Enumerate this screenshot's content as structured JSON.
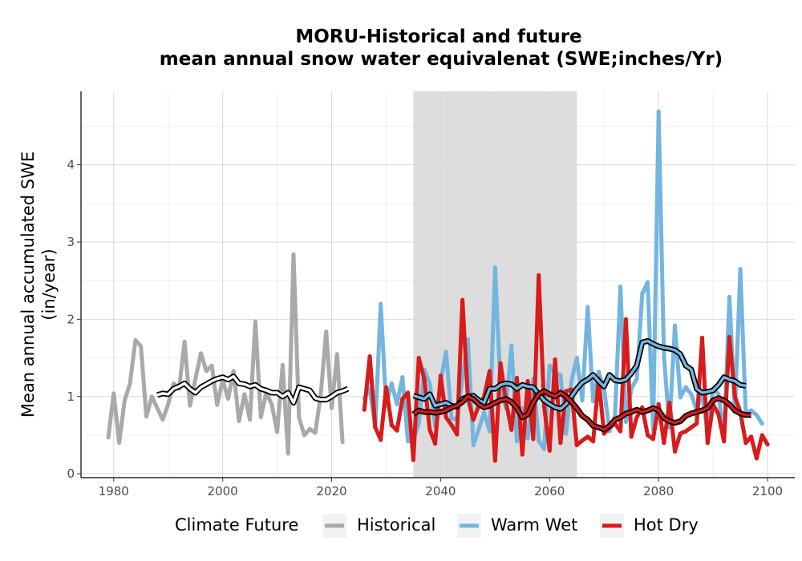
{
  "chart_data": {
    "type": "line",
    "title_line1": "MORU-Historical and future",
    "title_line2": "mean annual snow water equivalenat (SWE;inches/Yr)",
    "xlabel": "",
    "ylabel_line1": "Mean annual accumulated SWE",
    "ylabel_line2": "(in/year)",
    "xlim": [
      1974,
      2105
    ],
    "ylim": [
      -0.05,
      4.95
    ],
    "x_ticks": [
      1980,
      2000,
      2020,
      2040,
      2060,
      2080,
      2100
    ],
    "y_ticks": [
      0,
      1,
      2,
      3,
      4
    ],
    "grid": true,
    "shaded_period": [
      2035,
      2065
    ],
    "legend": {
      "title": "Climate Future",
      "position": "bottom"
    },
    "series": [
      {
        "name": "Historical",
        "color": "#a9a9a9",
        "x_start": 1979,
        "values": [
          0.47,
          1.04,
          0.4,
          0.95,
          1.17,
          1.73,
          1.65,
          0.74,
          1.0,
          0.85,
          0.7,
          0.9,
          1.17,
          1.1,
          1.71,
          0.88,
          1.23,
          1.56,
          1.33,
          1.4,
          0.89,
          1.22,
          0.97,
          1.33,
          0.68,
          1.03,
          0.7,
          1.97,
          0.73,
          1.05,
          0.9,
          0.54,
          1.41,
          0.26,
          2.84,
          0.73,
          0.5,
          0.58,
          0.53,
          1.02,
          1.84,
          0.85,
          1.55,
          0.41
        ]
      },
      {
        "name": "Warm Wet",
        "color": "#74b5e0",
        "x_start": 2026,
        "values": [
          0.98,
          1.1,
          0.6,
          2.2,
          0.88,
          1.17,
          0.9,
          1.25,
          0.42,
          0.44,
          0.65,
          1.35,
          1.17,
          0.62,
          1.19,
          1.58,
          0.72,
          0.7,
          1.25,
          1.74,
          0.37,
          0.58,
          0.79,
          0.55,
          2.67,
          1.12,
          0.85,
          1.66,
          0.42,
          0.85,
          0.46,
          1.23,
          0.43,
          0.32,
          1.4,
          1.3,
          1.28,
          0.52,
          1.2,
          1.5,
          0.95,
          2.16,
          0.94,
          1.32,
          1.1,
          0.55,
          0.74,
          2.42,
          0.67,
          1.1,
          1.23,
          2.33,
          2.48,
          0.57,
          4.69,
          1.52,
          0.6,
          1.92,
          0.99,
          1.12,
          1.03,
          0.82,
          1.05,
          0.52,
          1.1,
          1.03,
          0.45,
          2.29,
          0.8,
          2.65,
          0.78,
          0.82,
          0.76,
          0.65
        ]
      },
      {
        "name": "Hot Dry",
        "color": "#d81b1b",
        "x_start": 2026,
        "values": [
          0.83,
          1.52,
          0.6,
          0.44,
          1.12,
          0.63,
          0.56,
          0.97,
          1.05,
          0.18,
          1.5,
          1.23,
          0.57,
          0.39,
          1.27,
          0.73,
          0.63,
          0.51,
          2.25,
          0.98,
          0.7,
          0.88,
          1.0,
          1.33,
          0.17,
          1.43,
          0.93,
          0.57,
          1.24,
          0.25,
          1.2,
          0.45,
          2.57,
          0.87,
          0.3,
          1.48,
          0.4,
          1.07,
          1.09,
          0.37,
          0.43,
          0.48,
          0.42,
          1.23,
          0.52,
          0.6,
          0.65,
          0.55,
          2.0,
          0.48,
          0.73,
          0.86,
          0.5,
          0.45,
          0.9,
          0.4,
          0.92,
          0.29,
          0.52,
          0.55,
          0.6,
          0.65,
          1.76,
          0.4,
          0.9,
          0.77,
          0.42,
          1.77,
          1.0,
          0.8,
          0.4,
          0.48,
          0.2,
          0.5,
          0.38
        ]
      }
    ],
    "rolling_means": [
      {
        "of": "Historical",
        "x_start": 1988,
        "values": [
          1.02,
          1.04,
          1.03,
          1.1,
          1.13,
          1.17,
          1.1,
          1.05,
          1.12,
          1.16,
          1.2,
          1.23,
          1.25,
          1.22,
          1.26,
          1.17,
          1.16,
          1.13,
          1.15,
          1.1,
          1.08,
          1.05,
          1.05,
          1.0,
          1.05,
          0.92,
          1.12,
          1.1,
          1.08,
          0.98,
          0.96,
          0.96,
          1.0,
          1.05,
          1.07,
          1.1
        ]
      },
      {
        "of": "Warm Wet",
        "x_start": 2035,
        "values": [
          1.01,
          0.99,
          0.97,
          1.03,
          0.88,
          0.9,
          0.92,
          0.88,
          0.87,
          0.97,
          1.0,
          1.01,
          0.95,
          0.92,
          1.1,
          1.1,
          1.15,
          1.17,
          1.16,
          1.1,
          1.15,
          1.13,
          1.12,
          1.03,
          0.95,
          0.9,
          0.86,
          0.84,
          0.9,
          1.0,
          1.1,
          1.18,
          1.22,
          1.28,
          1.2,
          1.13,
          1.28,
          1.21,
          1.2,
          1.22,
          1.3,
          1.4,
          1.7,
          1.72,
          1.68,
          1.65,
          1.63,
          1.62,
          1.6,
          1.55,
          1.4,
          1.35,
          1.1,
          1.05,
          1.06,
          1.08,
          1.15,
          1.25,
          1.22,
          1.2,
          1.15,
          1.14
        ]
      },
      {
        "of": "Hot Dry",
        "x_start": 2035,
        "values": [
          0.77,
          0.82,
          0.8,
          0.8,
          0.79,
          0.8,
          0.82,
          0.86,
          0.88,
          0.93,
          1.0,
          0.97,
          0.9,
          0.86,
          0.88,
          0.92,
          0.95,
          0.97,
          0.93,
          0.85,
          0.73,
          0.77,
          0.92,
          1.03,
          1.07,
          1.03,
          1.0,
          1.05,
          1.0,
          0.93,
          0.85,
          0.75,
          0.7,
          0.62,
          0.6,
          0.57,
          0.62,
          0.7,
          0.73,
          0.78,
          0.8,
          0.83,
          0.8,
          0.82,
          0.85,
          0.82,
          0.72,
          0.68,
          0.66,
          0.68,
          0.75,
          0.78,
          0.8,
          0.82,
          0.85,
          0.95,
          0.98,
          0.95,
          0.9,
          0.82,
          0.78,
          0.76,
          0.76
        ]
      }
    ]
  }
}
